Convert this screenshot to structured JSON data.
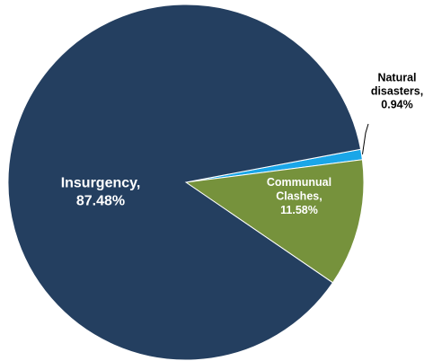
{
  "chart_data": {
    "type": "pie",
    "title": "",
    "slices": [
      {
        "name": "Natural disasters",
        "value": 0.94,
        "label_lines": [
          "Natural",
          "disasters,",
          "0.94%"
        ],
        "color": "#1aa6e8",
        "label_color": "#000000"
      },
      {
        "name": "Communual Clashes",
        "value": 11.58,
        "label_lines": [
          "Communual",
          "Clashes,",
          "11.58%"
        ],
        "color": "#76923c",
        "label_color": "#ffffff"
      },
      {
        "name": "Insurgency",
        "value": 87.48,
        "label_lines": [
          "Insurgency,",
          "87.48%"
        ],
        "color": "#243f60",
        "label_color": "#ffffff"
      }
    ],
    "legend": "none",
    "data_labels": "on-slice"
  }
}
